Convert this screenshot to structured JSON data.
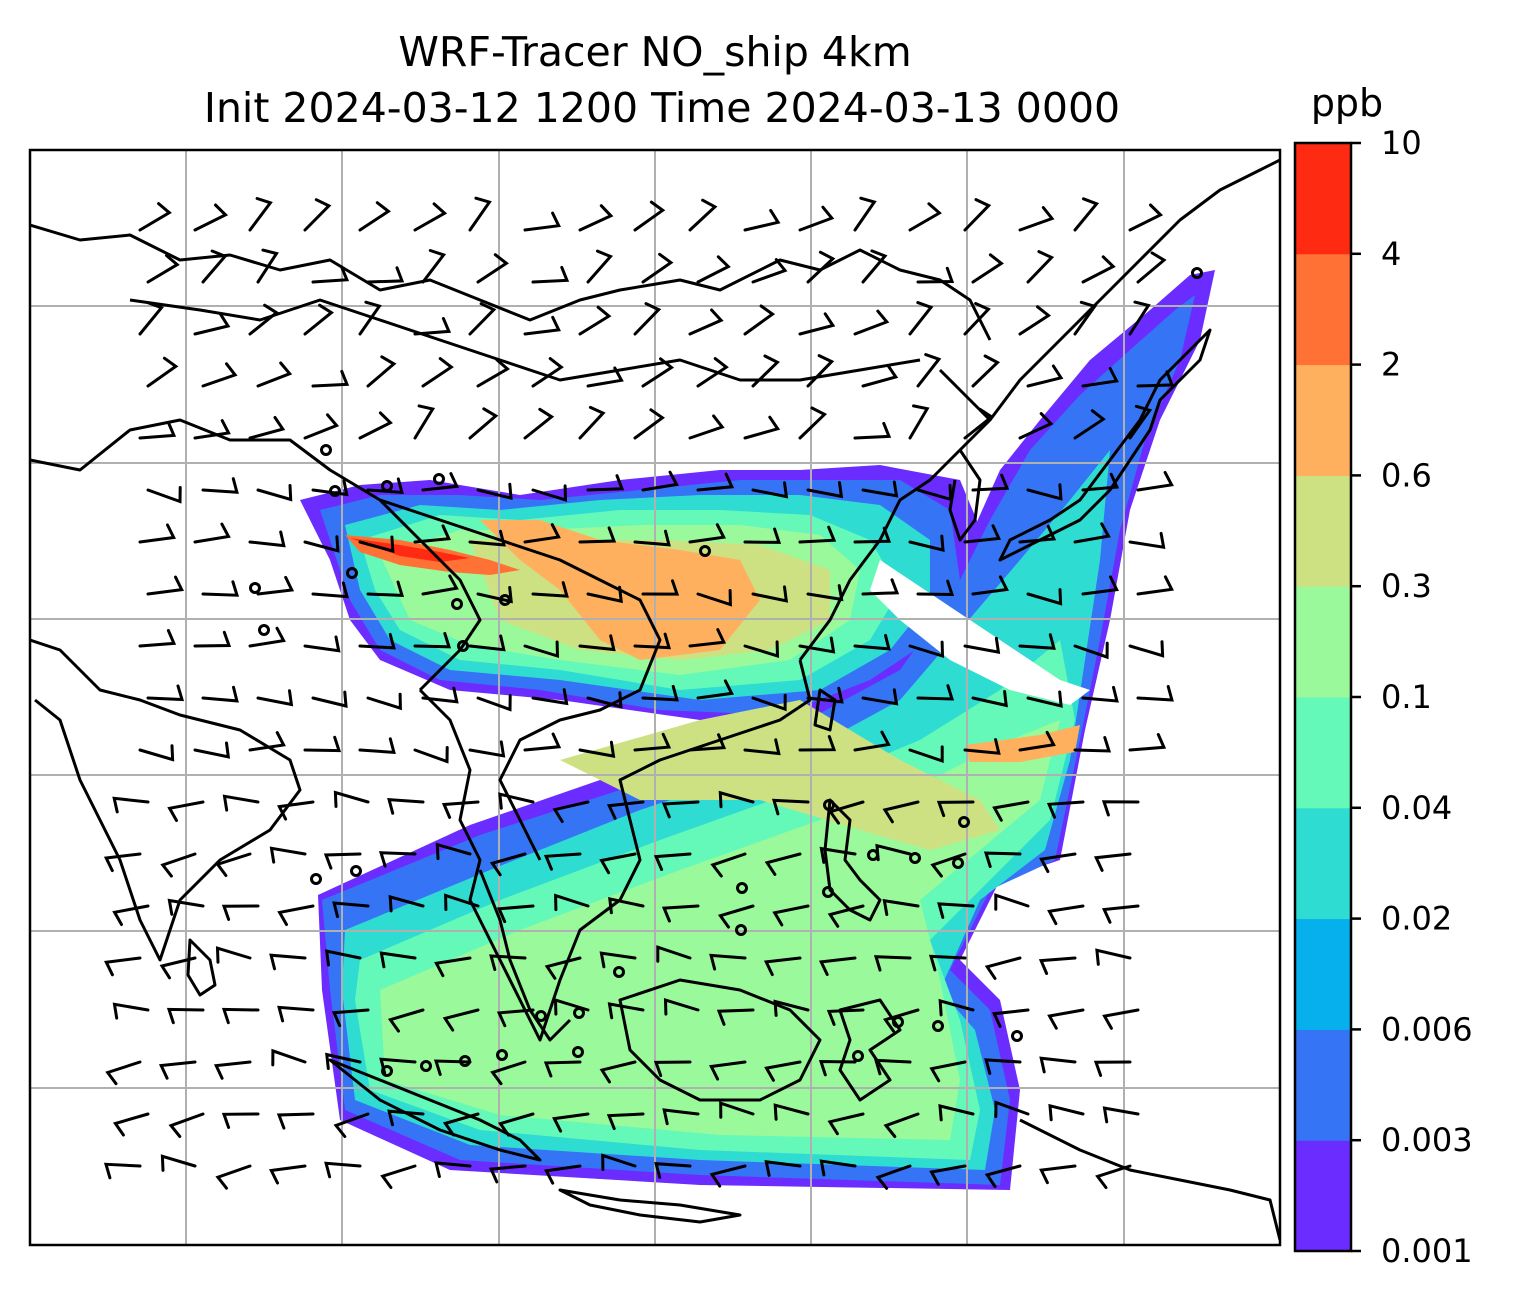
{
  "title": {
    "line1": "WRF-Tracer NO_ship 4km",
    "line2": "Init 2024-03-12 1200 Time 2024-03-13 0000"
  },
  "colorbar": {
    "unit": "ppb",
    "levels": [
      "0.001",
      "0.003",
      "0.006",
      "0.02",
      "0.04",
      "0.1",
      "0.3",
      "0.6",
      "2",
      "4",
      "10"
    ],
    "colors": [
      "#6a2cff",
      "#3574f5",
      "#06b0ec",
      "#2fdcd2",
      "#64f9b8",
      "#9af99a",
      "#cde183",
      "#ffb05e",
      "#ff7135",
      "#ff2a12"
    ]
  },
  "map": {
    "variable": "NO_ship",
    "gridlines": true,
    "coastline_color": "#000000",
    "grid_color": "#b0b0b0",
    "overlay": "wind barbs"
  }
}
